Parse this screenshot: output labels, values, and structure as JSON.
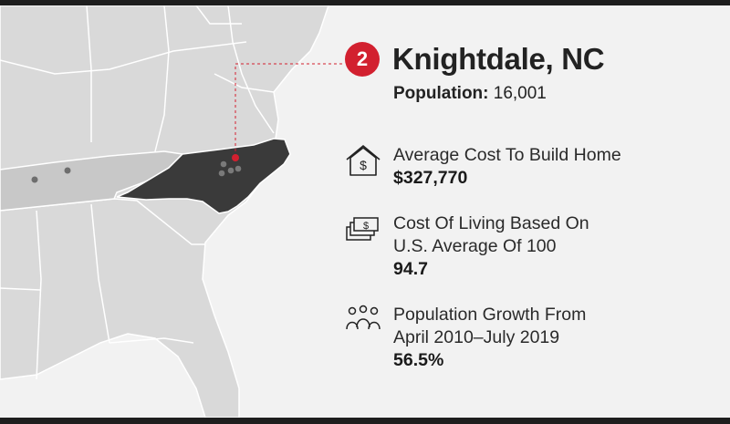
{
  "rank": "2",
  "city": "Knightdale, NC",
  "population": {
    "label": "Population:",
    "value": "16,001"
  },
  "stats": [
    {
      "icon": "house-dollar-icon",
      "label_lines": [
        "Average Cost To Build Home"
      ],
      "value": "$327,770"
    },
    {
      "icon": "money-stack-icon",
      "label_lines": [
        "Cost Of Living Based On",
        "U.S. Average Of 100"
      ],
      "value": "94.7"
    },
    {
      "icon": "people-group-icon",
      "label_lines": [
        "Population Growth From",
        "April 2010–July 2019"
      ],
      "value": "56.5%"
    }
  ],
  "colors": {
    "accent": "#d2202f",
    "highlight_state": "#3a3a3a",
    "neighbor_state": "#c8c8c8",
    "land": "#d9d9d9",
    "ocean": "#f2f2f2",
    "text": "#222222"
  }
}
